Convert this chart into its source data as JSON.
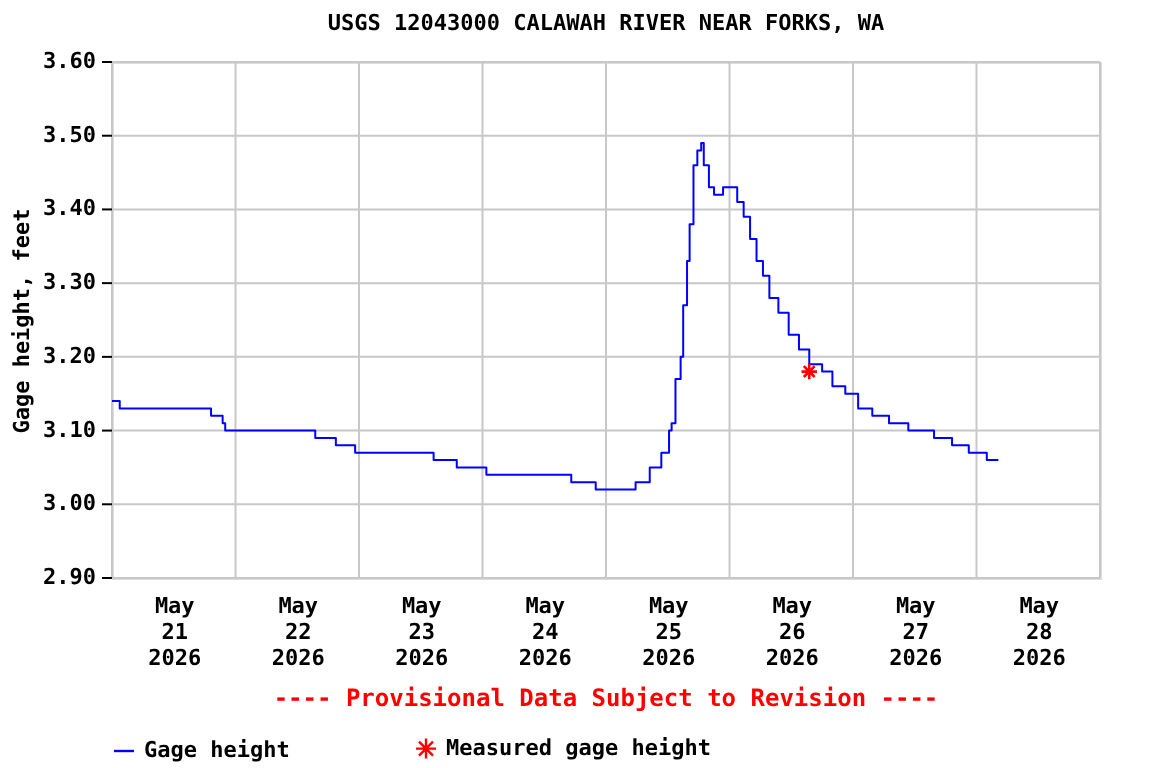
{
  "chart_data": {
    "type": "step",
    "title": "USGS 12043000 CALAWAH RIVER NEAR FORKS, WA",
    "ylabel": "Gage height, feet",
    "annotations": [
      "---- Provisional Data Subject to Revision ----"
    ],
    "xlim": [
      "2026-05-21T00:00",
      "2026-05-29T00:00"
    ],
    "xticks": [
      {
        "value": "2026-05-21T00:00",
        "label": null
      },
      {
        "value": "2026-05-21T12:00",
        "label": "May 21 2026"
      },
      {
        "value": "2026-05-22T00:00",
        "label": null
      },
      {
        "value": "2026-05-22T12:00",
        "label": "May 22 2026"
      },
      {
        "value": "2026-05-23T00:00",
        "label": null
      },
      {
        "value": "2026-05-23T12:00",
        "label": "May 23 2026"
      },
      {
        "value": "2026-05-24T00:00",
        "label": null
      },
      {
        "value": "2026-05-24T12:00",
        "label": "May 24 2026"
      },
      {
        "value": "2026-05-25T00:00",
        "label": null
      },
      {
        "value": "2026-05-25T12:00",
        "label": "May 25 2026"
      },
      {
        "value": "2026-05-26T00:00",
        "label": null
      },
      {
        "value": "2026-05-26T12:00",
        "label": "May 26 2026"
      },
      {
        "value": "2026-05-27T00:00",
        "label": null
      },
      {
        "value": "2026-05-27T12:00",
        "label": "May 27 2026"
      },
      {
        "value": "2026-05-28T00:00",
        "label": null
      },
      {
        "value": "2026-05-28T12:00",
        "label": "May 28 2026"
      },
      {
        "value": "2026-05-29T00:00",
        "label": null
      }
    ],
    "ylim": [
      2.9,
      3.6
    ],
    "yticks": [
      {
        "value": 2.9,
        "label": "2.90"
      },
      {
        "value": 3.0,
        "label": "3.00"
      },
      {
        "value": 3.1,
        "label": "3.10"
      },
      {
        "value": 3.2,
        "label": "3.20"
      },
      {
        "value": 3.3,
        "label": "3.30"
      },
      {
        "value": 3.4,
        "label": "3.40"
      },
      {
        "value": 3.5,
        "label": "3.50"
      },
      {
        "value": 3.6,
        "label": "3.60"
      }
    ],
    "grid": true,
    "legend": "bottom",
    "series": [
      {
        "name": "Gage height",
        "color": "#0000ff",
        "marker": "none",
        "x": [
          "2026-05-21T00:00",
          "2026-05-21T01:30",
          "2026-05-21T19:15",
          "2026-05-21T21:30",
          "2026-05-21T22:00",
          "2026-05-22T15:30",
          "2026-05-22T19:30",
          "2026-05-22T23:15",
          "2026-05-23T14:30",
          "2026-05-23T19:00",
          "2026-05-24T00:45",
          "2026-05-24T17:15",
          "2026-05-24T22:00",
          "2026-05-25T05:45",
          "2026-05-25T08:30",
          "2026-05-25T10:45",
          "2026-05-25T12:15",
          "2026-05-25T12:45",
          "2026-05-25T13:30",
          "2026-05-25T14:30",
          "2026-05-25T15:00",
          "2026-05-25T15:45",
          "2026-05-25T16:15",
          "2026-05-25T17:00",
          "2026-05-25T17:45",
          "2026-05-25T18:30",
          "2026-05-25T19:00",
          "2026-05-25T20:00",
          "2026-05-25T21:00",
          "2026-05-25T22:45",
          "2026-05-26T01:30",
          "2026-05-26T02:45",
          "2026-05-26T04:00",
          "2026-05-26T05:15",
          "2026-05-26T06:30",
          "2026-05-26T07:45",
          "2026-05-26T09:30",
          "2026-05-26T11:30",
          "2026-05-26T13:30",
          "2026-05-26T15:30",
          "2026-05-26T18:00",
          "2026-05-26T20:00",
          "2026-05-26T22:30",
          "2026-05-27T01:00",
          "2026-05-27T03:45",
          "2026-05-27T07:00",
          "2026-05-27T10:45",
          "2026-05-27T15:45",
          "2026-05-27T19:15",
          "2026-05-27T22:30",
          "2026-05-28T02:00",
          "2026-05-28T04:15"
        ],
        "values": [
          3.14,
          3.13,
          3.12,
          3.11,
          3.1,
          3.09,
          3.08,
          3.07,
          3.06,
          3.05,
          3.04,
          3.03,
          3.02,
          3.03,
          3.05,
          3.07,
          3.1,
          3.11,
          3.17,
          3.2,
          3.27,
          3.33,
          3.38,
          3.46,
          3.48,
          3.49,
          3.46,
          3.43,
          3.42,
          3.43,
          3.41,
          3.39,
          3.36,
          3.33,
          3.31,
          3.28,
          3.26,
          3.23,
          3.21,
          3.19,
          3.18,
          3.16,
          3.15,
          3.13,
          3.12,
          3.11,
          3.1,
          3.09,
          3.08,
          3.07,
          3.06,
          3.06
        ]
      },
      {
        "name": "Measured gage height",
        "type": "scatter",
        "color": "#ff0000",
        "marker": "cross",
        "x": [
          "2026-05-26T15:30"
        ],
        "values": [
          3.18
        ]
      }
    ]
  }
}
